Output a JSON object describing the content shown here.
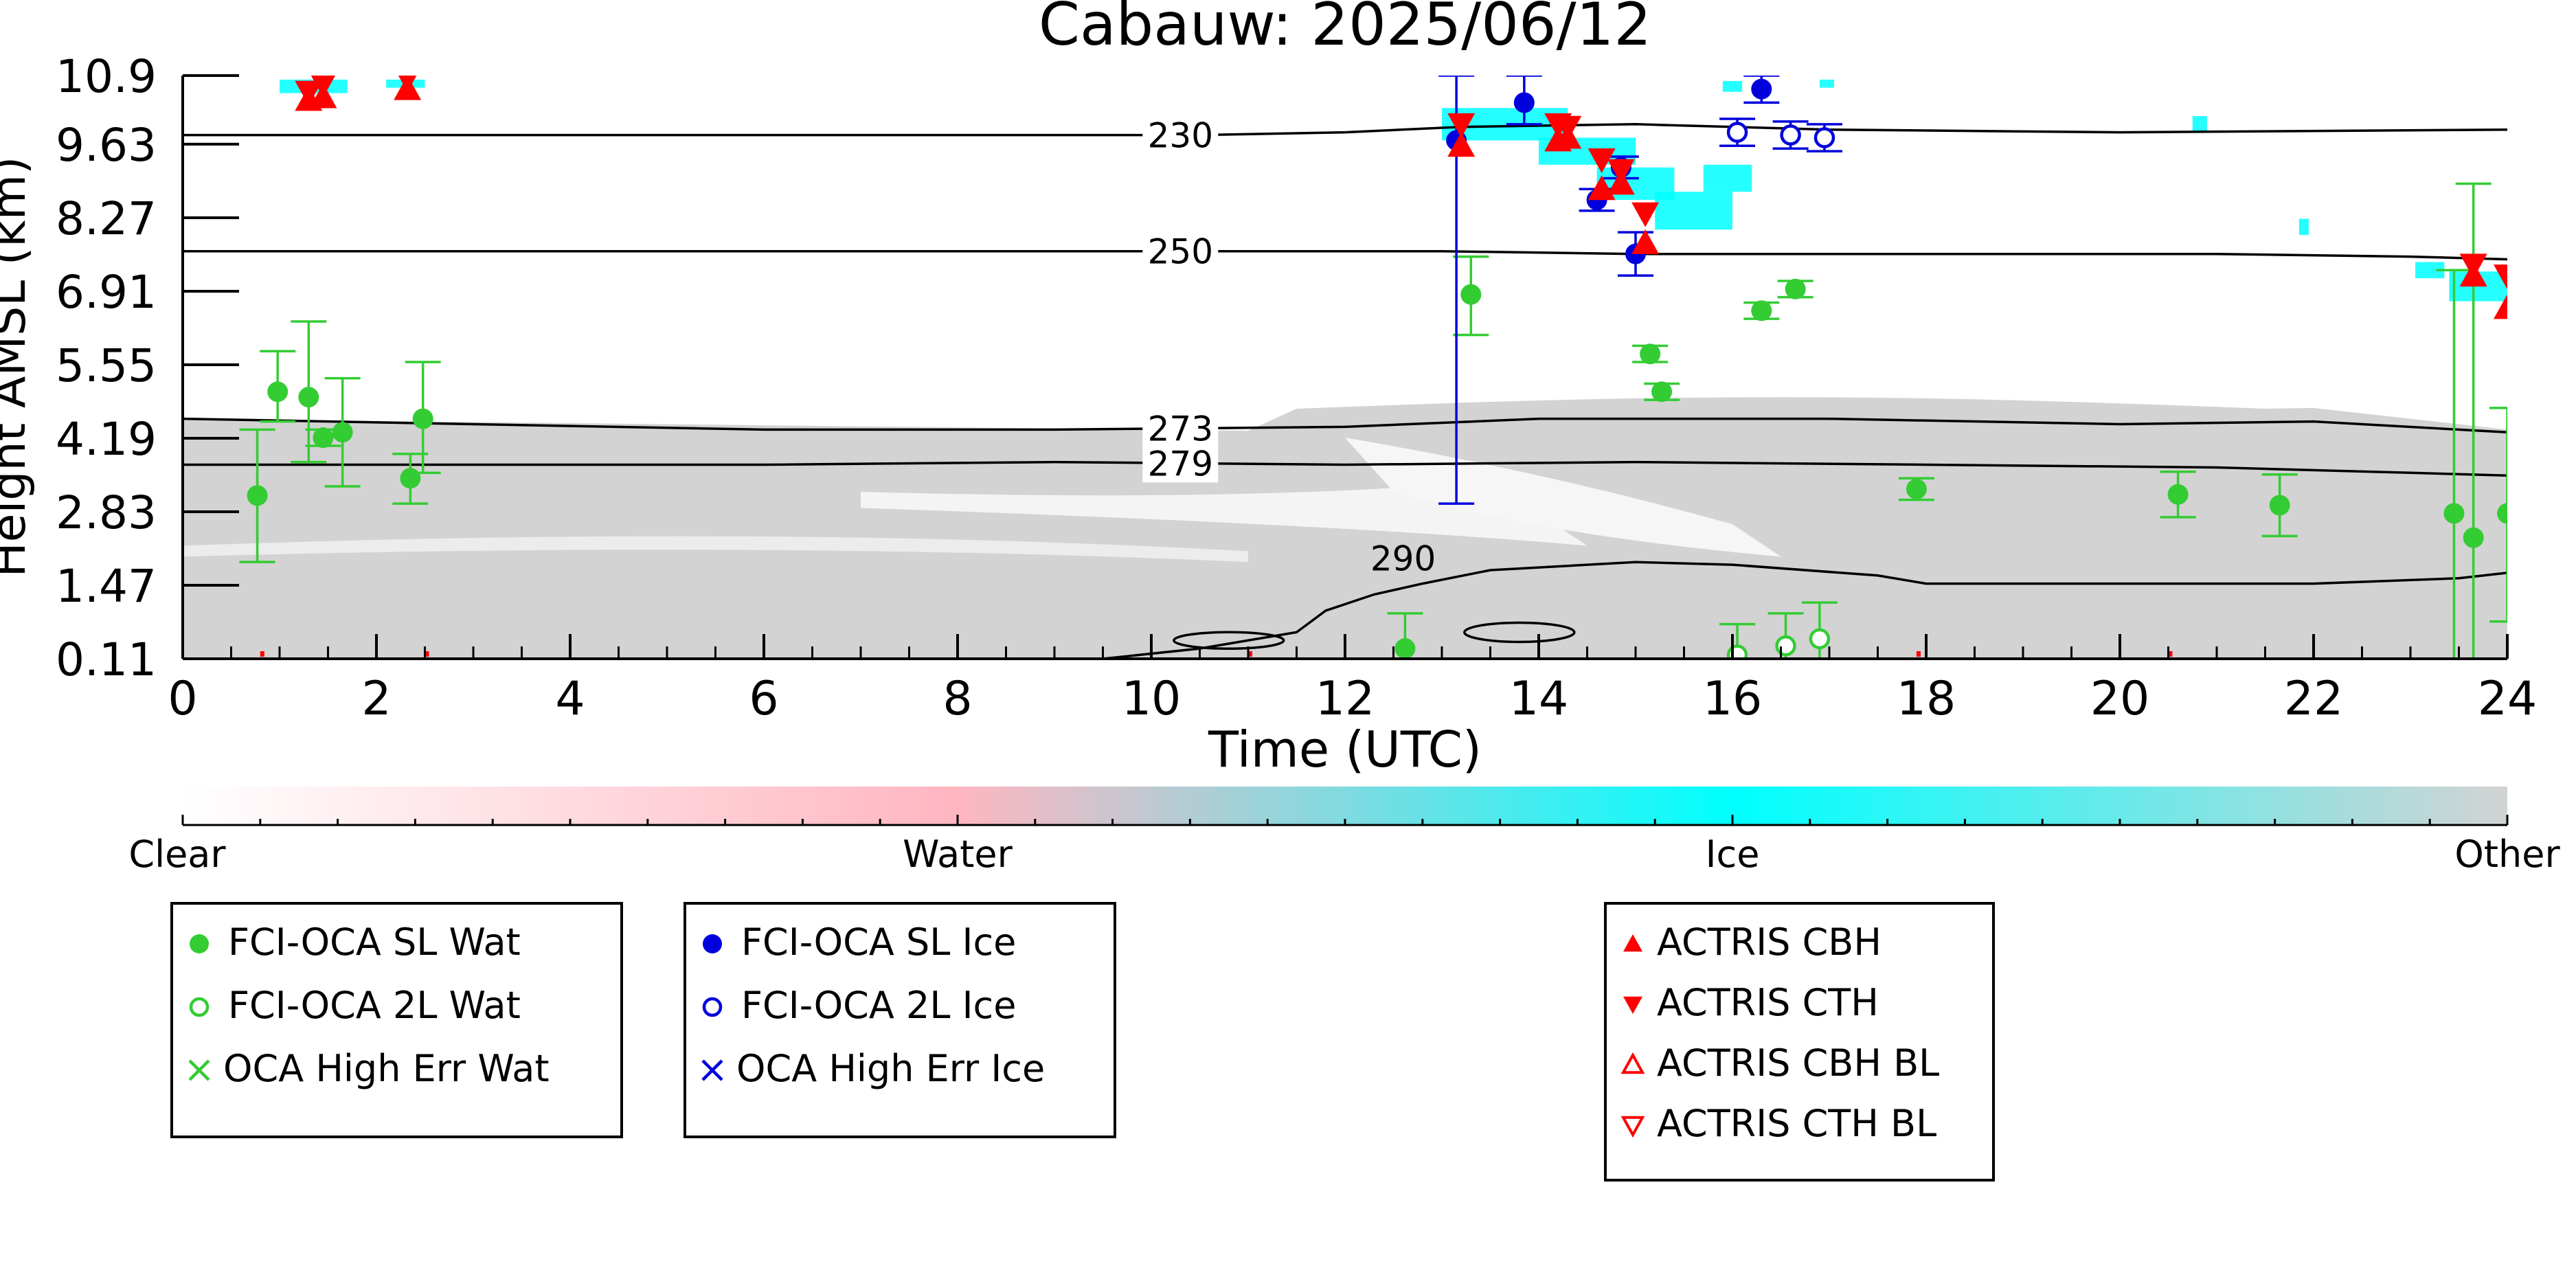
{
  "chart_data": {
    "type": "scatter",
    "title": "Cabauw: 2025/06/12",
    "xlabel": "Time (UTC)",
    "ylabel": "Height AMSL (km)",
    "xlim": [
      0,
      24
    ],
    "ylim": [
      0.11,
      10.9
    ],
    "x_ticks": [
      "0",
      "2",
      "4",
      "6",
      "8",
      "10",
      "12",
      "14",
      "16",
      "18",
      "20",
      "22",
      "24"
    ],
    "y_ticks": [
      "0.11",
      "1.47",
      "2.83",
      "4.19",
      "5.55",
      "6.91",
      "8.27",
      "9.63",
      "10.9"
    ],
    "colorbar": {
      "labels": [
        "Clear",
        "Water",
        "Ice",
        "Other"
      ],
      "colors": {
        "clear": "#ffffff",
        "water": "#ffb6c1",
        "ice": "#00ffff",
        "other": "#d3d3d3"
      }
    },
    "temperature_contours": [
      {
        "label": "230",
        "x": [
          0,
          4,
          8,
          10.5,
          12,
          13.2,
          15,
          17,
          20,
          24
        ],
        "y": [
          9.8,
          9.8,
          9.8,
          9.8,
          9.85,
          9.95,
          10.0,
          9.9,
          9.85,
          9.9
        ]
      },
      {
        "label": "250",
        "x": [
          0,
          4,
          8,
          11,
          13,
          15,
          18,
          21,
          23,
          24
        ],
        "y": [
          7.65,
          7.65,
          7.65,
          7.65,
          7.65,
          7.6,
          7.6,
          7.6,
          7.55,
          7.5
        ]
      },
      {
        "label": "273",
        "x": [
          0,
          3,
          6,
          9,
          12,
          14,
          17,
          20,
          22,
          24
        ],
        "y": [
          4.55,
          4.45,
          4.35,
          4.35,
          4.4,
          4.55,
          4.55,
          4.45,
          4.5,
          4.3
        ]
      },
      {
        "label": "279",
        "x": [
          0,
          3,
          6,
          9,
          12,
          15,
          18,
          21,
          23,
          24
        ],
        "y": [
          3.7,
          3.7,
          3.7,
          3.75,
          3.7,
          3.75,
          3.7,
          3.65,
          3.55,
          3.5
        ]
      },
      {
        "label": "290",
        "x": [
          9.5,
          10.5,
          11.5,
          11.8,
          12.3,
          12.8,
          13.5,
          15,
          16,
          17.5,
          18,
          20,
          22,
          23.5,
          24
        ],
        "y": [
          0.11,
          0.3,
          0.6,
          1.0,
          1.3,
          1.5,
          1.75,
          1.9,
          1.85,
          1.65,
          1.5,
          1.5,
          1.5,
          1.6,
          1.7
        ]
      }
    ],
    "series": [
      {
        "name": "FCI-OCA SL Wat",
        "color": "#33cc33",
        "marker": "filled-circle",
        "points": [
          {
            "x": 0.77,
            "y": 3.13,
            "lo": 1.9,
            "hi": 4.35
          },
          {
            "x": 0.98,
            "y": 5.05,
            "lo": 4.5,
            "hi": 5.8
          },
          {
            "x": 1.3,
            "y": 4.95,
            "lo": 3.75,
            "hi": 6.35
          },
          {
            "x": 1.45,
            "y": 4.2,
            "lo": 4.05,
            "hi": 4.35
          },
          {
            "x": 1.65,
            "y": 4.3,
            "lo": 3.3,
            "hi": 5.3
          },
          {
            "x": 2.35,
            "y": 3.45,
            "lo": 2.98,
            "hi": 3.9
          },
          {
            "x": 2.48,
            "y": 4.55,
            "lo": 3.55,
            "hi": 5.6
          },
          {
            "x": 12.62,
            "y": 0.3,
            "lo": 0.11,
            "hi": 0.95
          },
          {
            "x": 13.3,
            "y": 6.85,
            "lo": 6.1,
            "hi": 7.55
          },
          {
            "x": 15.15,
            "y": 5.75,
            "lo": 5.6,
            "hi": 5.9
          },
          {
            "x": 15.27,
            "y": 5.05,
            "lo": 4.9,
            "hi": 5.2
          },
          {
            "x": 16.3,
            "y": 6.55,
            "lo": 6.4,
            "hi": 6.7
          },
          {
            "x": 16.65,
            "y": 6.95,
            "lo": 6.8,
            "hi": 7.1
          },
          {
            "x": 17.9,
            "y": 3.25,
            "lo": 3.05,
            "hi": 3.45
          },
          {
            "x": 20.6,
            "y": 3.15,
            "lo": 2.73,
            "hi": 3.57
          },
          {
            "x": 21.65,
            "y": 2.95,
            "lo": 2.38,
            "hi": 3.52
          },
          {
            "x": 23.45,
            "y": 2.8,
            "lo": 0.11,
            "hi": 7.3
          },
          {
            "x": 23.65,
            "y": 2.35,
            "lo": 0.11,
            "hi": 8.9
          },
          {
            "x": 24.0,
            "y": 2.8,
            "lo": 0.8,
            "hi": 4.75
          }
        ]
      },
      {
        "name": "FCI-OCA 2L Wat",
        "color": "#33cc33",
        "marker": "open-circle",
        "points": [
          {
            "x": 16.05,
            "y": 0.18,
            "lo": 0.11,
            "hi": 0.75
          },
          {
            "x": 16.55,
            "y": 0.35,
            "lo": 0.11,
            "hi": 0.95
          },
          {
            "x": 16.9,
            "y": 0.48,
            "lo": 0.11,
            "hi": 1.15
          }
        ]
      },
      {
        "name": "OCA High Err Wat",
        "color": "#33cc33",
        "marker": "x",
        "points": []
      },
      {
        "name": "FCI-OCA SL Ice",
        "color": "#0000dd",
        "marker": "filled-circle",
        "points": [
          {
            "x": 13.15,
            "y": 9.7,
            "lo": 2.98,
            "hi": 10.9
          },
          {
            "x": 13.85,
            "y": 10.4,
            "lo": 10.0,
            "hi": 10.9
          },
          {
            "x": 14.6,
            "y": 8.6,
            "lo": 8.4,
            "hi": 8.8
          },
          {
            "x": 14.85,
            "y": 9.2,
            "lo": 9.0,
            "hi": 9.4
          },
          {
            "x": 15.0,
            "y": 7.6,
            "lo": 7.2,
            "hi": 8.0
          },
          {
            "x": 16.3,
            "y": 10.65,
            "lo": 10.4,
            "hi": 10.9
          }
        ]
      },
      {
        "name": "FCI-OCA 2L Ice",
        "color": "#0000dd",
        "marker": "open-circle",
        "points": [
          {
            "x": 16.05,
            "y": 9.85,
            "lo": 9.6,
            "hi": 10.1
          },
          {
            "x": 16.6,
            "y": 9.8,
            "lo": 9.55,
            "hi": 10.05
          },
          {
            "x": 16.95,
            "y": 9.75,
            "lo": 9.5,
            "hi": 10.0
          }
        ]
      },
      {
        "name": "OCA High Err Ice",
        "color": "#0000dd",
        "marker": "x",
        "points": []
      },
      {
        "name": "ACTRIS CBH",
        "color": "#ff0000",
        "marker": "triangle-up",
        "points": [
          {
            "x": 1.3,
            "y": 10.45
          },
          {
            "x": 1.45,
            "y": 10.5
          },
          {
            "x": 2.32,
            "y": 10.65
          },
          {
            "x": 13.2,
            "y": 9.6
          },
          {
            "x": 14.2,
            "y": 9.7
          },
          {
            "x": 14.3,
            "y": 9.75
          },
          {
            "x": 14.65,
            "y": 8.8
          },
          {
            "x": 14.85,
            "y": 8.9
          },
          {
            "x": 15.1,
            "y": 7.8
          },
          {
            "x": 23.65,
            "y": 7.2
          },
          {
            "x": 24.0,
            "y": 6.6
          }
        ]
      },
      {
        "name": "ACTRIS CTH",
        "color": "#ff0000",
        "marker": "triangle-down",
        "points": [
          {
            "x": 1.3,
            "y": 10.6
          },
          {
            "x": 1.45,
            "y": 10.75
          },
          {
            "x": 2.32,
            "y": 10.85
          },
          {
            "x": 13.2,
            "y": 10.0
          },
          {
            "x": 14.2,
            "y": 10.0
          },
          {
            "x": 14.3,
            "y": 9.95
          },
          {
            "x": 14.65,
            "y": 9.35
          },
          {
            "x": 14.85,
            "y": 9.15
          },
          {
            "x": 15.1,
            "y": 8.35
          },
          {
            "x": 23.65,
            "y": 7.4
          },
          {
            "x": 24.0,
            "y": 7.2
          }
        ]
      },
      {
        "name": "ACTRIS CBH BL",
        "color": "#ff0000",
        "marker": "open-triangle-up",
        "points": []
      },
      {
        "name": "ACTRIS CTH BL",
        "color": "#ff0000",
        "marker": "open-triangle-down",
        "points": []
      }
    ],
    "legend_groups": [
      [
        "FCI-OCA SL Wat",
        "FCI-OCA 2L Wat",
        "OCA High Err Wat"
      ],
      [
        "FCI-OCA SL Ice",
        "FCI-OCA 2L Ice",
        "OCA High Err Ice"
      ],
      [
        "ACTRIS CBH",
        "ACTRIS CTH",
        "ACTRIS CBH BL",
        "ACTRIS CTH BL"
      ]
    ],
    "legend_placement": "bottom",
    "grid": false
  }
}
